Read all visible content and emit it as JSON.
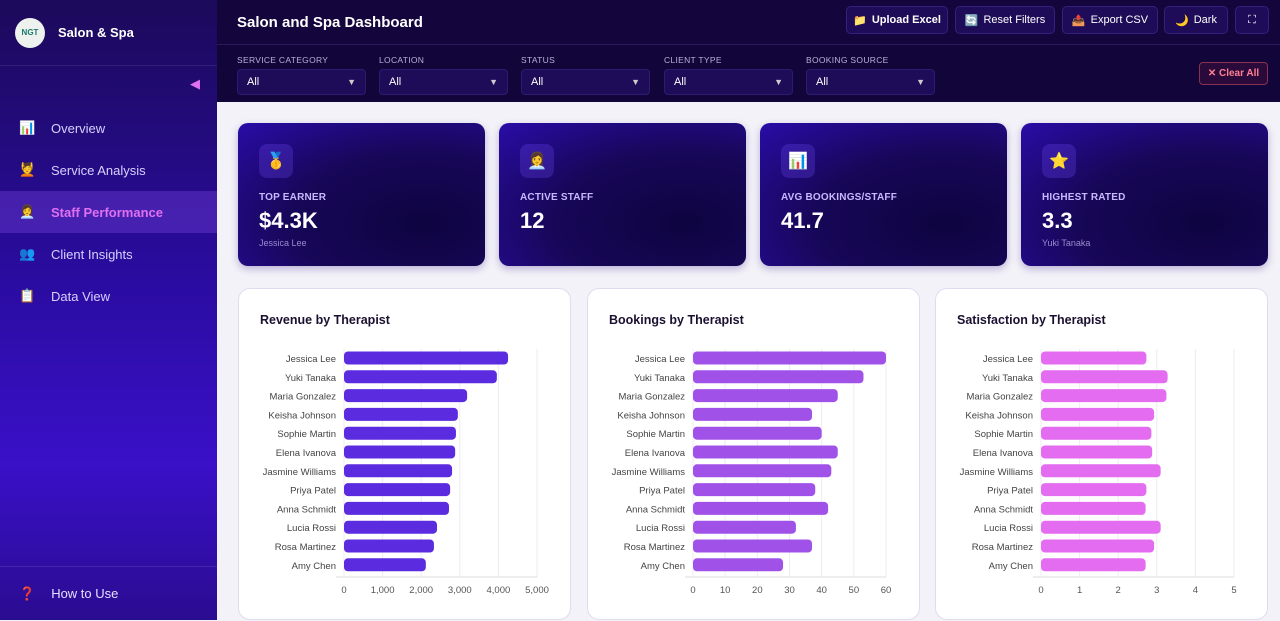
{
  "sidebar": {
    "brand": "Salon & Spa",
    "logo_text": "NGT",
    "items": [
      {
        "label": "Overview",
        "icon": "📊"
      },
      {
        "label": "Service Analysis",
        "icon": "💆"
      },
      {
        "label": "Staff Performance",
        "icon": "👩‍💼"
      },
      {
        "label": "Client Insights",
        "icon": "👥"
      },
      {
        "label": "Data View",
        "icon": "📋"
      }
    ],
    "how_to": "How to Use"
  },
  "header": {
    "title": "Salon and Spa Dashboard",
    "buttons": {
      "upload": "Upload Excel",
      "reset": "Reset Filters",
      "export": "Export CSV",
      "theme": "Dark"
    }
  },
  "filters": [
    {
      "label": "SERVICE CATEGORY",
      "value": "All"
    },
    {
      "label": "LOCATION",
      "value": "All"
    },
    {
      "label": "STATUS",
      "value": "All"
    },
    {
      "label": "CLIENT TYPE",
      "value": "All"
    },
    {
      "label": "BOOKING SOURCE",
      "value": "All"
    }
  ],
  "clear_all": "Clear All",
  "kpis": [
    {
      "label": "TOP EARNER",
      "value": "$4.3K",
      "sub": "Jessica Lee",
      "icon": "🥇"
    },
    {
      "label": "ACTIVE STAFF",
      "value": "12",
      "sub": "",
      "icon": "👩‍💼"
    },
    {
      "label": "AVG BOOKINGS/STAFF",
      "value": "41.7",
      "sub": "",
      "icon": "📊"
    },
    {
      "label": "HIGHEST RATED",
      "value": "3.3",
      "sub": "Yuki Tanaka",
      "icon": "⭐"
    }
  ],
  "chart_data": [
    {
      "type": "bar",
      "orientation": "horizontal",
      "title": "Revenue by Therapist",
      "color": "#5b2be0",
      "categories": [
        "Jessica Lee",
        "Yuki Tanaka",
        "Maria Gonzalez",
        "Keisha Johnson",
        "Sophie Martin",
        "Elena Ivanova",
        "Jasmine Williams",
        "Priya Patel",
        "Anna Schmidt",
        "Lucia Rossi",
        "Rosa Martinez",
        "Amy Chen"
      ],
      "values": [
        4250,
        3960,
        3190,
        2950,
        2900,
        2880,
        2800,
        2750,
        2720,
        2410,
        2330,
        2120
      ],
      "xlim": [
        0,
        5000
      ],
      "ticks": [
        "0",
        "1,000",
        "2,000",
        "3,000",
        "4,000",
        "5,000"
      ]
    },
    {
      "type": "bar",
      "orientation": "horizontal",
      "title": "Bookings by Therapist",
      "color": "#a052e8",
      "categories": [
        "Jessica Lee",
        "Yuki Tanaka",
        "Maria Gonzalez",
        "Keisha Johnson",
        "Sophie Martin",
        "Elena Ivanova",
        "Jasmine Williams",
        "Priya Patel",
        "Anna Schmidt",
        "Lucia Rossi",
        "Rosa Martinez",
        "Amy Chen"
      ],
      "values": [
        60,
        53,
        45,
        37,
        40,
        45,
        43,
        38,
        42,
        32,
        37,
        28
      ],
      "xlim": [
        0,
        60
      ],
      "ticks": [
        "0",
        "10",
        "20",
        "30",
        "40",
        "50",
        "60"
      ]
    },
    {
      "type": "bar",
      "orientation": "horizontal",
      "title": "Satisfaction by Therapist",
      "color": "#e46cf0",
      "categories": [
        "Jessica Lee",
        "Yuki Tanaka",
        "Maria Gonzalez",
        "Keisha Johnson",
        "Sophie Martin",
        "Elena Ivanova",
        "Jasmine Williams",
        "Priya Patel",
        "Anna Schmidt",
        "Lucia Rossi",
        "Rosa Martinez",
        "Amy Chen"
      ],
      "values": [
        2.73,
        3.28,
        3.25,
        2.93,
        2.86,
        2.88,
        3.1,
        2.73,
        2.71,
        3.1,
        2.93,
        2.71
      ],
      "xlim": [
        0,
        5
      ],
      "ticks": [
        "0",
        "1",
        "2",
        "3",
        "4",
        "5"
      ]
    }
  ]
}
